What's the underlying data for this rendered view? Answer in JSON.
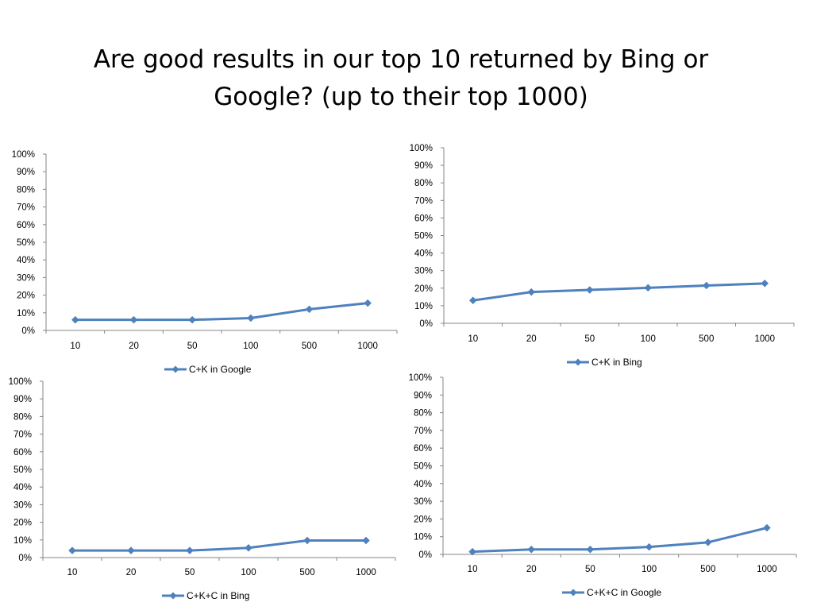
{
  "title": {
    "line1": "Are good results in our top 10 returned by Bing or",
    "line2": "Google? (up to their top 1000)"
  },
  "colors": {
    "series": "#4f81bd",
    "axis": "#868686"
  },
  "chart_data": [
    {
      "type": "line",
      "position": "top-left",
      "categories": [
        "10",
        "20",
        "50",
        "100",
        "500",
        "1000"
      ],
      "y_ticks": [
        "100%",
        "90%",
        "80%",
        "70%",
        "60%",
        "50%",
        "40%",
        "30%",
        "20%",
        "10%",
        "0%"
      ],
      "ylim": [
        0,
        100
      ],
      "series": [
        {
          "name": "C+K in Google",
          "values": [
            6,
            6,
            6,
            7,
            12,
            15.5
          ]
        }
      ],
      "legend": "bottom",
      "grid": false
    },
    {
      "type": "line",
      "position": "top-right",
      "categories": [
        "10",
        "20",
        "50",
        "100",
        "500",
        "1000"
      ],
      "y_ticks": [
        "100%",
        "90%",
        "80%",
        "70%",
        "60%",
        "50%",
        "40%",
        "30%",
        "20%",
        "10%",
        "0%"
      ],
      "ylim": [
        0,
        100
      ],
      "series": [
        {
          "name": "C+K in Bing",
          "values": [
            13,
            17.8,
            19,
            20.2,
            21.5,
            22.7
          ]
        }
      ],
      "legend": "bottom",
      "grid": false
    },
    {
      "type": "line",
      "position": "bottom-left",
      "categories": [
        "10",
        "20",
        "50",
        "100",
        "500",
        "1000"
      ],
      "y_ticks": [
        "100%",
        "90%",
        "80%",
        "70%",
        "60%",
        "50%",
        "40%",
        "30%",
        "20%",
        "10%",
        "0%"
      ],
      "ylim": [
        0,
        100
      ],
      "series": [
        {
          "name": "C+K+C in Bing",
          "values": [
            4,
            4,
            4,
            5.5,
            9.7,
            9.7
          ]
        }
      ],
      "legend": "bottom",
      "grid": false
    },
    {
      "type": "line",
      "position": "bottom-right",
      "categories": [
        "10",
        "20",
        "50",
        "100",
        "500",
        "1000"
      ],
      "y_ticks": [
        "100%",
        "90%",
        "80%",
        "70%",
        "60%",
        "50%",
        "40%",
        "30%",
        "20%",
        "10%",
        "0%"
      ],
      "ylim": [
        0,
        100
      ],
      "series": [
        {
          "name": "C+K+C in Google",
          "values": [
            1.5,
            2.8,
            2.8,
            4.2,
            6.8,
            15
          ]
        }
      ],
      "legend": "bottom",
      "grid": false
    }
  ]
}
